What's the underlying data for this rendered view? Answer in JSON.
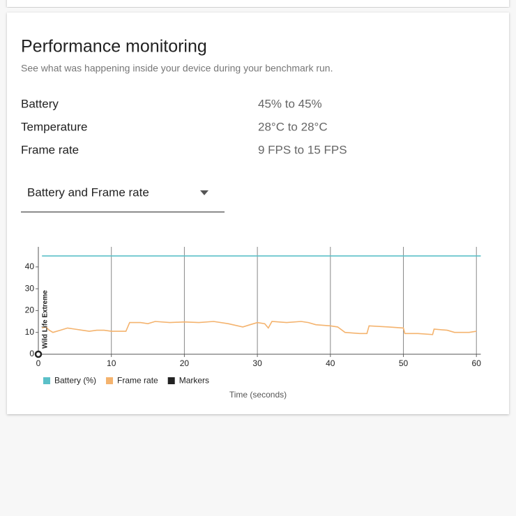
{
  "header": {
    "title": "Performance monitoring",
    "subtitle": "See what was happening inside your device during your benchmark run."
  },
  "stats": [
    [
      "Battery",
      "45% to 45%"
    ],
    [
      "Temperature",
      "28°C to 28°C"
    ],
    [
      "Frame rate",
      "9 FPS to 15 FPS"
    ]
  ],
  "dropdown": {
    "label": "Battery and Frame rate"
  },
  "chart_data": {
    "type": "line",
    "x_label": "Time (seconds)",
    "xlim": [
      0,
      60.6
    ],
    "ylim": [
      0,
      49.2
    ],
    "xticks": [
      0,
      10,
      20,
      30,
      40,
      50,
      60
    ],
    "yticks": [
      0,
      10,
      20,
      30,
      40
    ],
    "grid": true,
    "series": [
      {
        "name": "Battery (%)",
        "color": "#5bc0c8",
        "x": [
          0.5,
          60.6
        ],
        "values": [
          45,
          45
        ]
      },
      {
        "name": "Frame rate",
        "color": "#f4b36e",
        "x": [
          0.5,
          1,
          1.5,
          2,
          3,
          4,
          5,
          6,
          7,
          8,
          9,
          10,
          11,
          12,
          12.5,
          14,
          15,
          16,
          18,
          20,
          22,
          24,
          26,
          28,
          29,
          30,
          31,
          31.5,
          32,
          34,
          36,
          37,
          38,
          40,
          41,
          42,
          44,
          45,
          45.3,
          48,
          50,
          50.2,
          52,
          54,
          54.2,
          56,
          57,
          59,
          60
        ],
        "values": [
          12,
          12.5,
          11,
          10,
          11,
          12,
          11.5,
          11,
          10.5,
          11,
          11,
          10.5,
          10.5,
          10.5,
          14.5,
          14.5,
          14,
          15,
          14.5,
          14.8,
          14.5,
          15,
          14,
          12.5,
          13.5,
          14.5,
          14,
          12,
          15,
          14.5,
          15,
          14.5,
          13.5,
          13,
          12.5,
          10,
          9.5,
          9.5,
          13,
          12.5,
          12,
          9.5,
          9.5,
          9,
          11.5,
          11,
          10,
          10,
          10.5
        ]
      },
      {
        "name": "Markers",
        "color": "#222222",
        "x": [
          0
        ],
        "values": [
          0
        ],
        "labels": [
          "Wild Life Extreme"
        ]
      }
    ]
  }
}
